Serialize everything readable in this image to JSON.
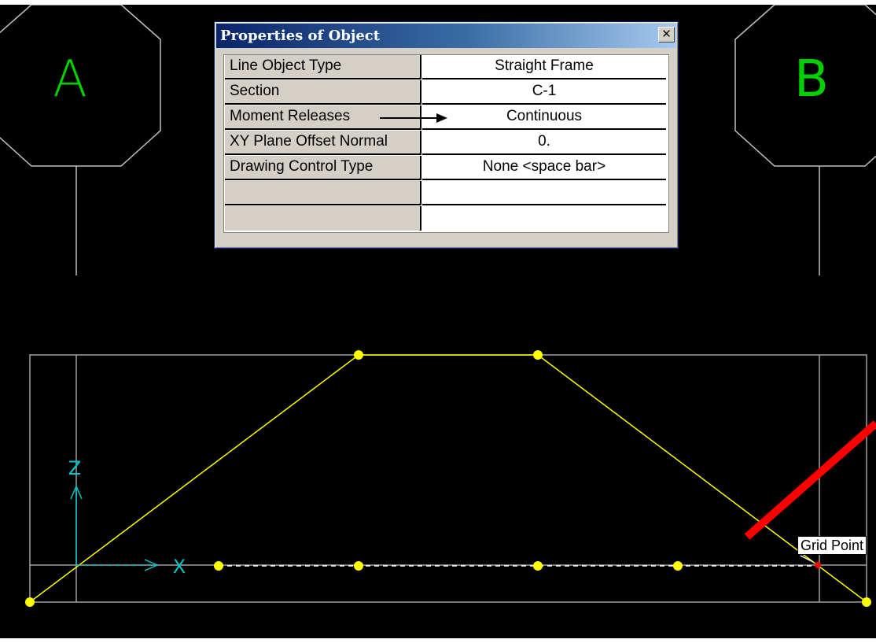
{
  "dialog": {
    "title": "Properties of Object",
    "close_glyph": "✕",
    "rows": [
      {
        "property": "Line Object Type",
        "value": "Straight Frame"
      },
      {
        "property": "Section",
        "value": "C-1"
      },
      {
        "property": "Moment Releases",
        "value": "Continuous"
      },
      {
        "property": "XY Plane Offset Normal",
        "value": "0."
      },
      {
        "property": "Drawing Control Type",
        "value": "None  <space bar>"
      },
      {
        "property": "",
        "value": ""
      },
      {
        "property": "",
        "value": ""
      }
    ]
  },
  "canvas": {
    "grid_bubbles": [
      "A",
      "B"
    ],
    "axis_labels": {
      "x": "X",
      "z": "Z"
    },
    "tooltip": "Grid Point",
    "colors": {
      "background": "#000000",
      "grid_lines": "#c0c0c0",
      "frame": "#ffff00",
      "bubble_text": "#00d000",
      "axis": "#00c8c8",
      "annotation_arrow": "#ff0000",
      "snap_point": "#ff0000"
    }
  }
}
